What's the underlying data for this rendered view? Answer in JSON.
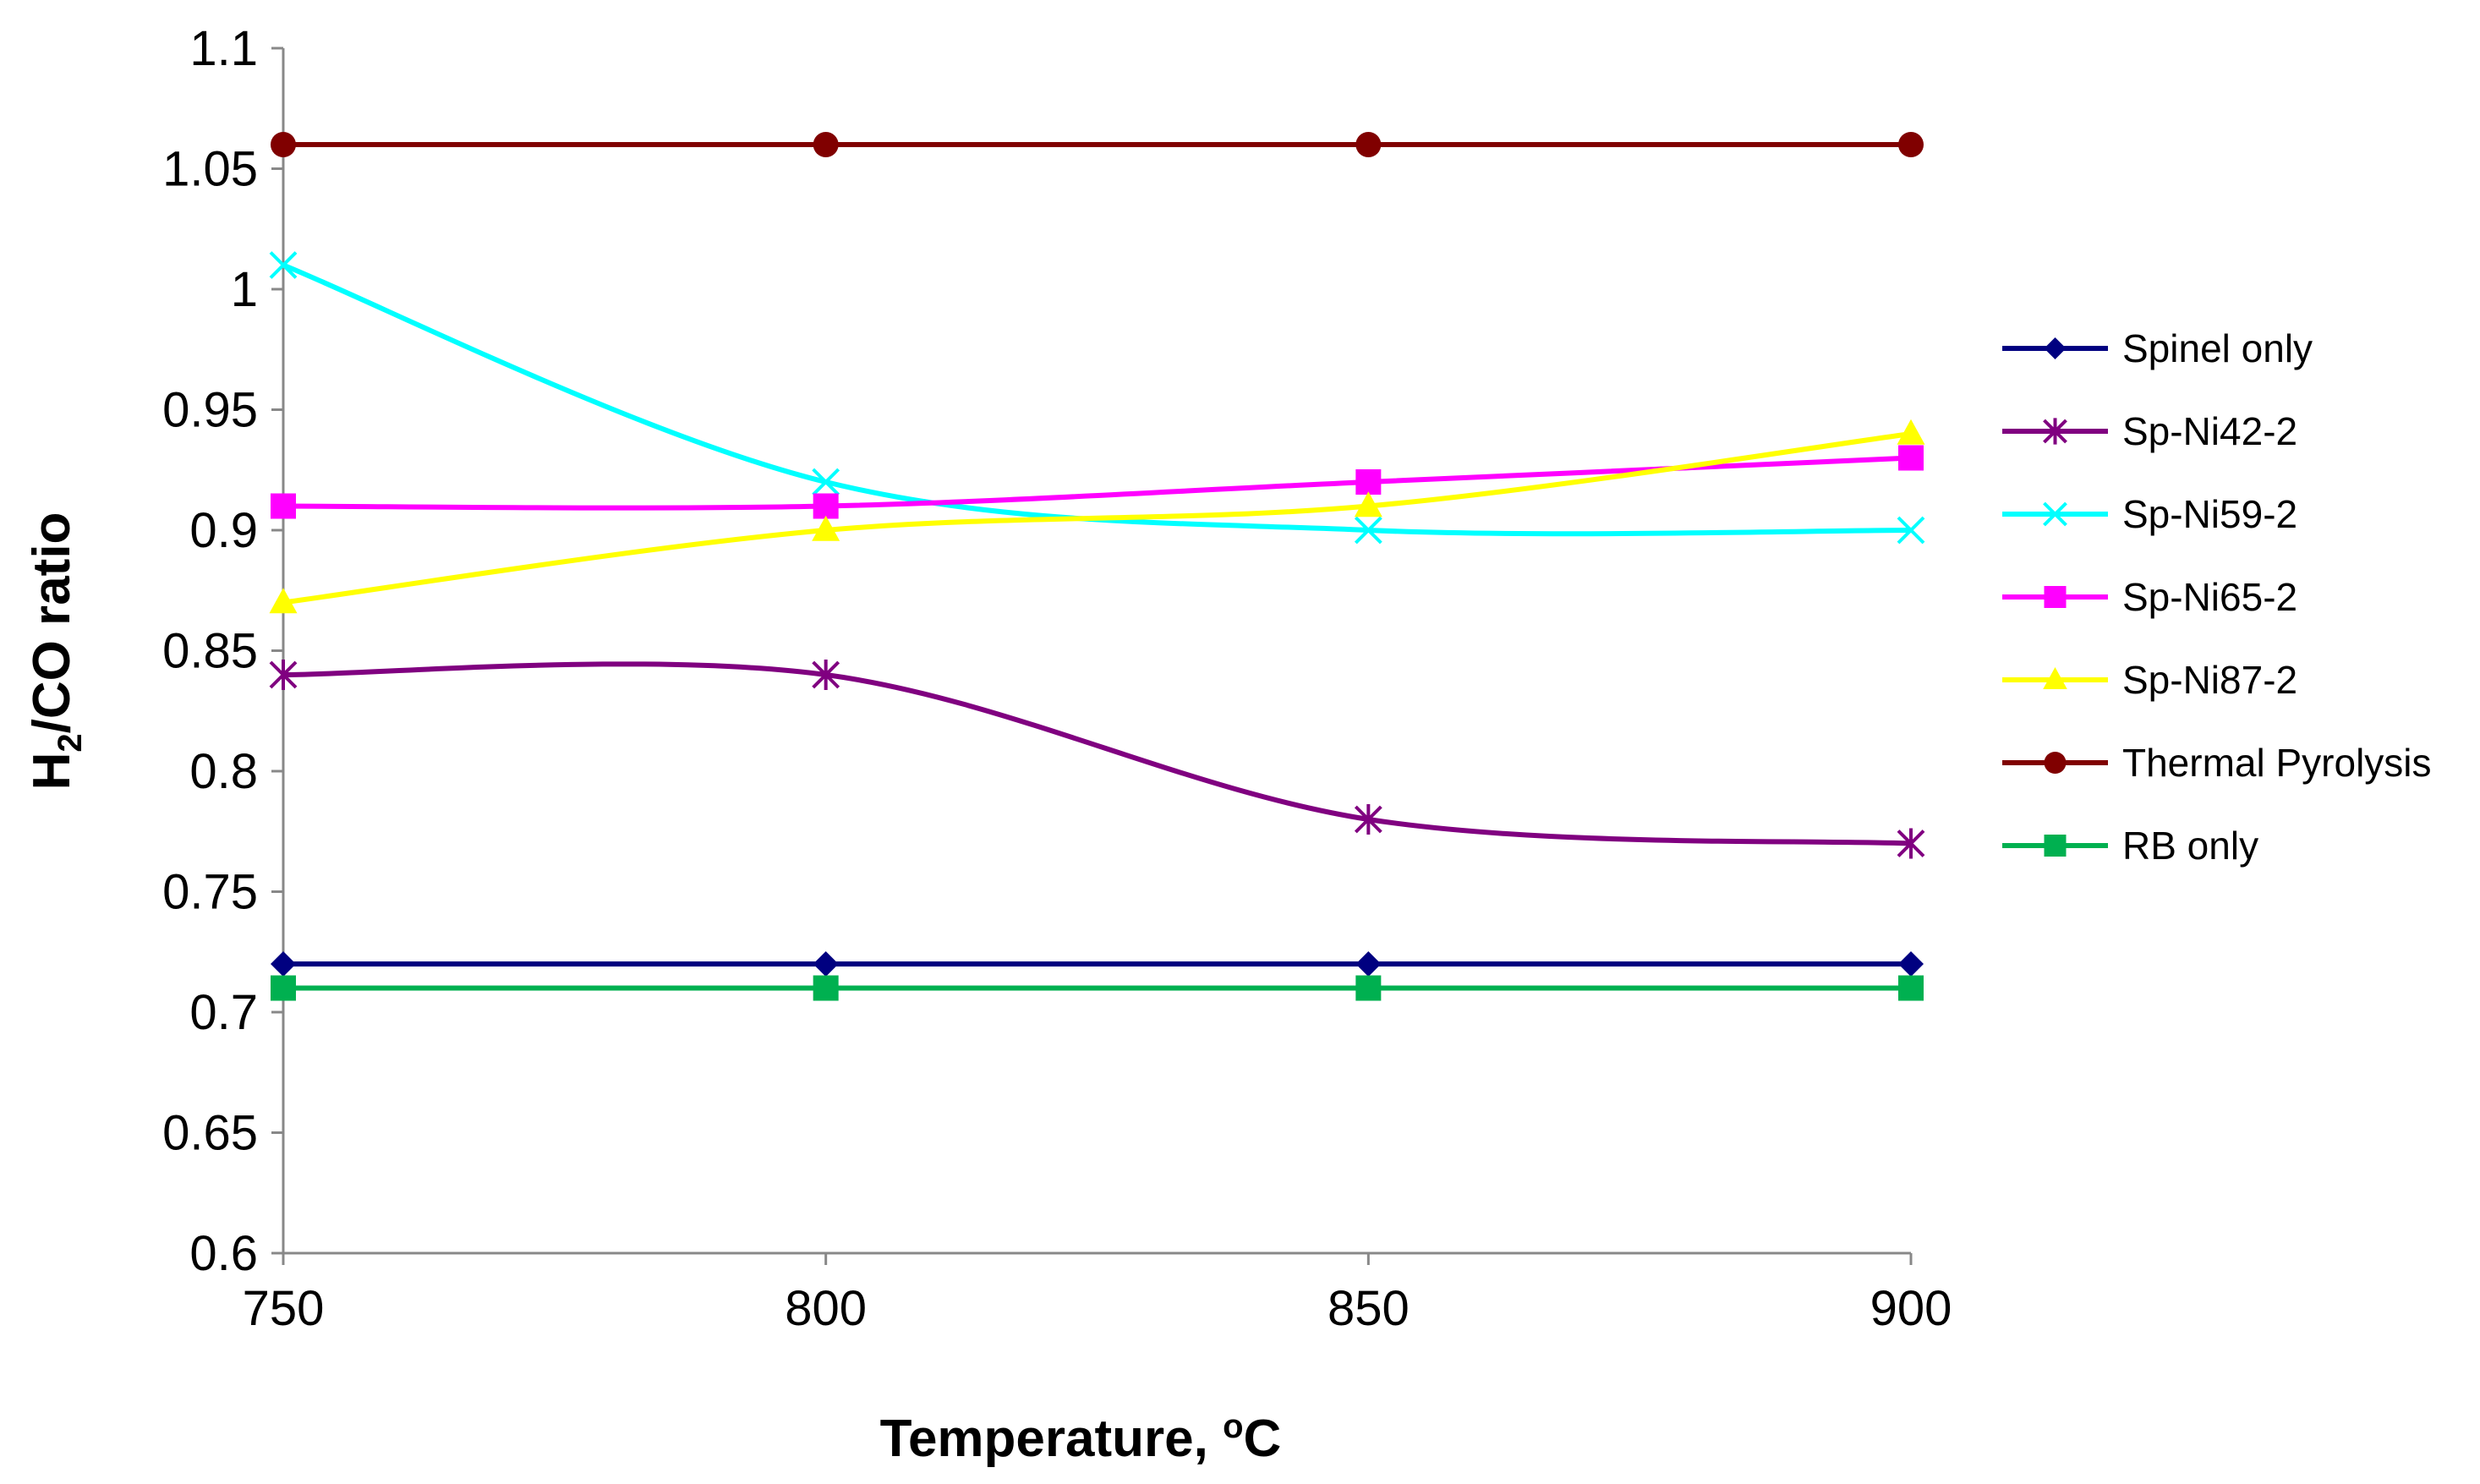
{
  "chart_data": {
    "type": "line",
    "title": "",
    "xlabel": "Temperature, ",
    "xlabel_sup": "o",
    "xlabel_tail": "C",
    "ylabel_prefix": "H",
    "ylabel_sub": "2",
    "ylabel_tail": "/CO ratio",
    "x": [
      750,
      800,
      850,
      900
    ],
    "x_tick_labels": [
      "750",
      "800",
      "850",
      "900"
    ],
    "ylim": [
      0.6,
      1.1
    ],
    "y_ticks": [
      0.6,
      0.65,
      0.7,
      0.75,
      0.8,
      0.85,
      0.9,
      0.95,
      1.0,
      1.05,
      1.1
    ],
    "y_tick_labels": [
      "0.6",
      "0.65",
      "0.7",
      "0.75",
      "0.8",
      "0.85",
      "0.9",
      "0.95",
      "1",
      "1.05",
      "1.1"
    ],
    "grid": false,
    "legend_position": "right",
    "series": [
      {
        "name": "Spinel only",
        "values": [
          0.72,
          0.72,
          0.72,
          0.72
        ],
        "color": "#000080",
        "marker": "diamond",
        "smooth": false
      },
      {
        "name": "Sp-Ni42-2",
        "values": [
          0.84,
          0.84,
          0.78,
          0.77
        ],
        "color": "#800080",
        "marker": "asterisk",
        "smooth": true
      },
      {
        "name": "Sp-Ni59-2",
        "values": [
          1.01,
          0.92,
          0.9,
          0.9
        ],
        "color": "#00FFFF",
        "marker": "x",
        "smooth": true
      },
      {
        "name": "Sp-Ni65-2",
        "values": [
          0.91,
          0.91,
          0.92,
          0.93
        ],
        "color": "#FF00FF",
        "marker": "square",
        "smooth": true
      },
      {
        "name": "Sp-Ni87-2",
        "values": [
          0.87,
          0.9,
          0.91,
          0.94
        ],
        "color": "#FFFF00",
        "marker": "triangle",
        "smooth": true
      },
      {
        "name": "Thermal Pyrolysis",
        "values": [
          1.06,
          1.06,
          1.06,
          1.06
        ],
        "color": "#800000",
        "marker": "circle",
        "smooth": false
      },
      {
        "name": "RB only",
        "values": [
          0.71,
          0.71,
          0.71,
          0.71
        ],
        "color": "#00B050",
        "marker": "square",
        "smooth": false
      }
    ]
  }
}
